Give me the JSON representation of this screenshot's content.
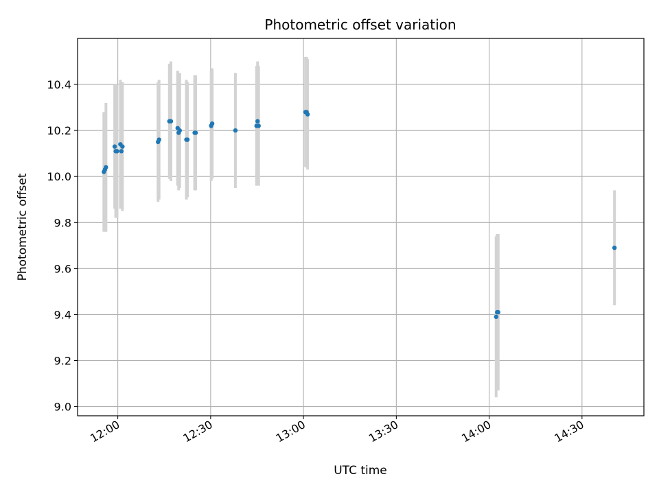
{
  "chart_data": {
    "type": "scatter",
    "title": "Photometric offset variation",
    "xlabel": "UTC time",
    "ylabel": "Photometric offset",
    "x_ticks": [
      "12:00",
      "12:30",
      "13:00",
      "13:30",
      "14:00",
      "14:30"
    ],
    "y_ticks": [
      "9.0",
      "9.2",
      "9.4",
      "9.6",
      "9.8",
      "10.0",
      "10.2",
      "10.4"
    ],
    "xlim": [
      "11:47",
      "14:50"
    ],
    "ylim": [
      8.96,
      10.6
    ],
    "grid": true,
    "marker_color": "#1f77b4",
    "errorbar_color": "#d3d3d3",
    "points": [
      {
        "t": "11:55:30",
        "y": 10.02,
        "err": 0.26
      },
      {
        "t": "11:55:50",
        "y": 10.03,
        "err": 0.25
      },
      {
        "t": "11:56:10",
        "y": 10.04,
        "err": 0.28
      },
      {
        "t": "11:59:00",
        "y": 10.13,
        "err": 0.27
      },
      {
        "t": "11:59:20",
        "y": 10.11,
        "err": 0.29
      },
      {
        "t": "11:59:45",
        "y": 10.11,
        "err": 0.29
      },
      {
        "t": "12:00:50",
        "y": 10.14,
        "err": 0.28
      },
      {
        "t": "12:01:10",
        "y": 10.11,
        "err": 0.25
      },
      {
        "t": "12:01:30",
        "y": 10.13,
        "err": 0.28
      },
      {
        "t": "12:13:00",
        "y": 10.15,
        "err": 0.26
      },
      {
        "t": "12:13:20",
        "y": 10.16,
        "err": 0.26
      },
      {
        "t": "12:16:40",
        "y": 10.24,
        "err": 0.25
      },
      {
        "t": "12:17:10",
        "y": 10.24,
        "err": 0.26
      },
      {
        "t": "12:19:20",
        "y": 10.21,
        "err": 0.25
      },
      {
        "t": "12:19:40",
        "y": 10.19,
        "err": 0.25
      },
      {
        "t": "12:20:00",
        "y": 10.2,
        "err": 0.25
      },
      {
        "t": "12:22:10",
        "y": 10.16,
        "err": 0.26
      },
      {
        "t": "12:22:30",
        "y": 10.16,
        "err": 0.25
      },
      {
        "t": "12:24:50",
        "y": 10.19,
        "err": 0.25
      },
      {
        "t": "12:25:10",
        "y": 10.19,
        "err": 0.25
      },
      {
        "t": "12:30:10",
        "y": 10.22,
        "err": 0.24
      },
      {
        "t": "12:30:30",
        "y": 10.23,
        "err": 0.24
      },
      {
        "t": "12:38:00",
        "y": 10.2,
        "err": 0.25
      },
      {
        "t": "12:44:50",
        "y": 10.22,
        "err": 0.26
      },
      {
        "t": "12:45:10",
        "y": 10.24,
        "err": 0.26
      },
      {
        "t": "12:45:30",
        "y": 10.22,
        "err": 0.26
      },
      {
        "t": "13:00:40",
        "y": 10.28,
        "err": 0.24
      },
      {
        "t": "13:01:00",
        "y": 10.28,
        "err": 0.24
      },
      {
        "t": "13:01:20",
        "y": 10.27,
        "err": 0.24
      },
      {
        "t": "14:02:15",
        "y": 9.39,
        "err": 0.35
      },
      {
        "t": "14:02:35",
        "y": 9.41,
        "err": 0.34
      },
      {
        "t": "14:02:55",
        "y": 9.41,
        "err": 0.34
      },
      {
        "t": "14:40:30",
        "y": 9.69,
        "err": 0.25
      }
    ]
  }
}
